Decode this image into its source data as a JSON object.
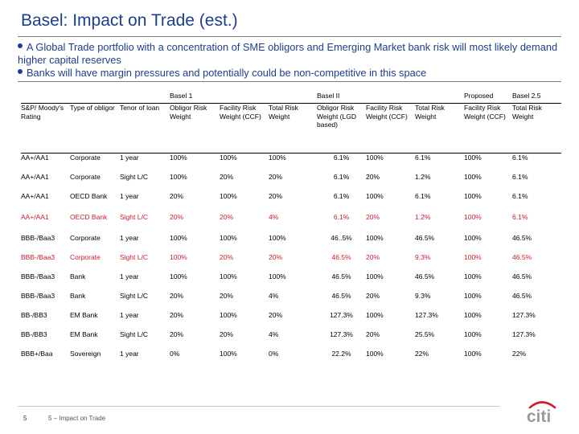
{
  "title": "Basel: Impact on Trade (est.)",
  "bullets": [
    "A Global Trade portfolio with a concentration of SME obligors and Emerging Market bank risk will most likely demand higher capital reserves",
    "Banks will have margin pressures and potentially could be non-competitive in this space"
  ],
  "table": {
    "groups": {
      "basel1": "Basel 1",
      "basel2": "Basel II",
      "proposed": "Proposed",
      "basel25": "Basel 2.5"
    },
    "columns": [
      "S&P/ Moody's Rating",
      "Type of obligor",
      "Tenor of loan",
      "Obligor Risk Weight",
      "Facility Risk Weight (CCF)",
      "Total Risk Weight",
      "Obligor Risk Weight (LGD based)",
      "Facility Risk Weight (CCF)",
      "Total Risk Weight",
      "Facility Risk Weight (CCF)",
      "Total Risk Weight"
    ],
    "rows": [
      [
        "AA+/AA1",
        "Corporate",
        "1 year",
        "100%",
        "100%",
        "100%",
        "6.1%",
        "100%",
        "6.1%",
        "100%",
        "6.1%"
      ],
      [
        "AA+/AA1",
        "Corporate",
        "Sight L/C",
        "100%",
        "20%",
        "20%",
        "6.1%",
        "20%",
        "1.2%",
        "100%",
        "6.1%"
      ],
      [
        "AA+/AA1",
        "OECD Bank",
        "1 year",
        "20%",
        "100%",
        "20%",
        "6.1%",
        "100%",
        "6.1%",
        "100%",
        "6.1%"
      ],
      [
        "AA+/AA1",
        "OECD Bank",
        "Sight L/C",
        "20%",
        "20%",
        "4%",
        "6.1%",
        "20%",
        "1.2%",
        "100%",
        "6.1%"
      ],
      [
        "BBB-/Baa3",
        "Corporate",
        "1 year",
        "100%",
        "100%",
        "100%",
        "46..5%",
        "100%",
        "46.5%",
        "100%",
        "46.5%"
      ],
      [
        "BBB-/Baa3",
        "Corporate",
        "Sight L/C",
        "100%",
        "20%",
        "20%",
        "46.5%",
        "20%",
        "9.3%",
        "100%",
        "46.5%"
      ],
      [
        "BBB-/Baa3",
        "Bank",
        "1 year",
        "100%",
        "100%",
        "100%",
        "46.5%",
        "100%",
        "46.5%",
        "100%",
        "46.5%"
      ],
      [
        "BBB-/Baa3",
        "Bank",
        "Sight L/C",
        "20%",
        "20%",
        "4%",
        "46.5%",
        "20%",
        "9.3%",
        "100%",
        "46.5%"
      ],
      [
        "BB-/BB3",
        "EM Bank",
        "1 year",
        "20%",
        "100%",
        "20%",
        "127.3%",
        "100%",
        "127.3%",
        "100%",
        "127.3%"
      ],
      [
        "BB-/BB3",
        "EM Bank",
        "Sight L/C",
        "20%",
        "20%",
        "4%",
        "127.3%",
        "20%",
        "25.5%",
        "100%",
        "127.3%"
      ],
      [
        "BBB+/Baa",
        "Sovereign",
        "1 year",
        "0%",
        "100%",
        "0%",
        "22.2%",
        "100%",
        "22%",
        "100%",
        "22%"
      ]
    ]
  },
  "footer": {
    "page_number": "5",
    "section": "5 – Impact on Trade"
  },
  "logo": {
    "text": "citi",
    "arc_color": "#d11a2a",
    "text_color": "#9a9a9a"
  },
  "colors": {
    "title": "#1b3f8f",
    "highlight": "#d11a2a"
  }
}
